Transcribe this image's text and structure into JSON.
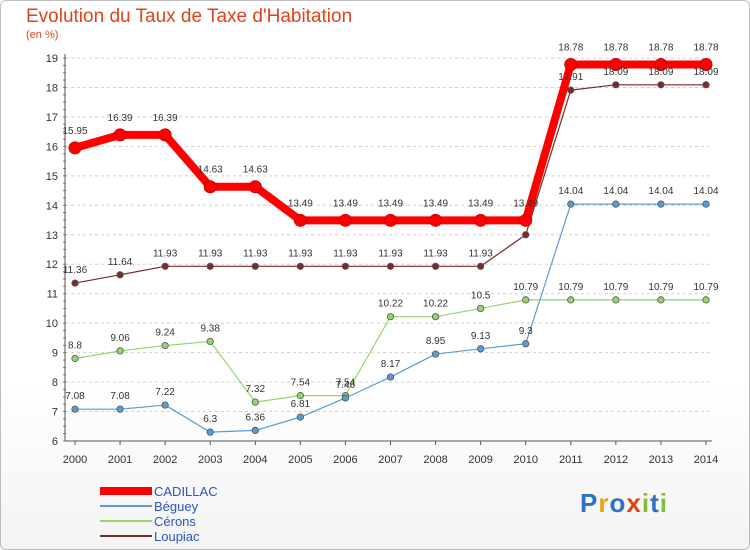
{
  "header": {
    "title": "Evolution du Taux de Taxe d'Habitation",
    "unit": "(en %)"
  },
  "logo": {
    "text": "Proxiti",
    "colors": [
      "#2f6fc4",
      "#e8a21c",
      "#2f6fc4",
      "#e0431b",
      "#7fbf3b",
      "#2f6fc4",
      "#7fbf3b"
    ]
  },
  "chart_data": {
    "type": "line",
    "title": "Evolution du Taux de Taxe d'Habitation",
    "ylabel": "(en %)",
    "xlabel": "",
    "x": [
      "2000",
      "2001",
      "2002",
      "2003",
      "2004",
      "2005",
      "2006",
      "2007",
      "2008",
      "2009",
      "2010",
      "2011",
      "2012",
      "2013",
      "2014"
    ],
    "yticks": [
      6,
      7,
      8,
      9,
      10,
      11,
      12,
      13,
      14,
      15,
      16,
      17,
      18,
      19
    ],
    "ylim": [
      6,
      19
    ],
    "grid": "horizontal dashed",
    "legend_position": "bottom-left",
    "series": [
      {
        "name": "CADILLAC",
        "color": "#ff0000",
        "values": [
          15.95,
          16.39,
          16.39,
          14.63,
          14.63,
          13.49,
          13.49,
          13.49,
          13.49,
          13.49,
          13.49,
          18.78,
          18.78,
          18.78,
          18.78
        ],
        "labels": [
          "15.95",
          "16.39",
          "16.39",
          "14.63",
          "14.63",
          "13.49",
          "13.49",
          "13.49",
          "13.49",
          "13.49",
          "13.49",
          "18.78",
          "18.78",
          "18.78",
          "18.78"
        ]
      },
      {
        "name": "Béguey",
        "color": "#5b9bd5",
        "values": [
          7.08,
          7.08,
          7.22,
          6.3,
          6.36,
          6.81,
          7.46,
          8.17,
          8.95,
          9.13,
          9.3,
          14.04,
          14.04,
          14.04,
          14.04
        ],
        "labels": [
          "7.08",
          "7.08",
          "7.22",
          "6.3",
          "6.36",
          "6.81",
          "7.46",
          "8.17",
          "8.95",
          "9.13",
          "9.3",
          "14.04",
          "14.04",
          "14.04",
          "14.04"
        ]
      },
      {
        "name": "Cérons",
        "color": "#94d66b",
        "values": [
          8.8,
          9.06,
          9.24,
          9.38,
          7.32,
          7.54,
          7.54,
          10.22,
          10.22,
          10.5,
          10.79,
          10.79,
          10.79,
          10.79,
          10.79
        ],
        "labels": [
          "8.8",
          "9.06",
          "9.24",
          "9.38",
          "7.32",
          "7.54",
          "7.54",
          "10.22",
          "10.22",
          "10.5",
          "10.79",
          "10.79",
          "10.79",
          "10.79",
          "10.79"
        ]
      },
      {
        "name": "Loupiac",
        "color": "#7a2a2a",
        "values": [
          11.36,
          11.64,
          11.93,
          11.93,
          11.93,
          11.93,
          11.93,
          11.93,
          11.93,
          11.93,
          13.0,
          17.91,
          18.09,
          18.09,
          18.09
        ],
        "labels": [
          "11.36",
          "11.64",
          "11.93",
          "11.93",
          "11.93",
          "11.93",
          "11.93",
          "11.93",
          "11.93",
          "11.93",
          "",
          "17.91",
          "18.09",
          "18.09",
          "18.09"
        ]
      }
    ]
  }
}
